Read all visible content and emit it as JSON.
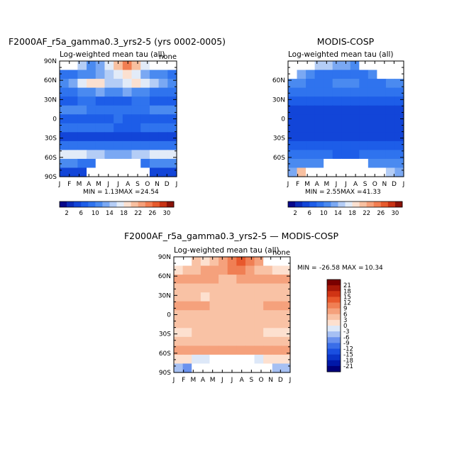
{
  "chart_data": [
    {
      "type": "heatmap",
      "title": "F2000AF_r5a_gamma0.3_yrs2-5 (yrs 0002-0005)",
      "subtitle_left": "Log-weighted mean tau (all)",
      "subtitle_right": "none",
      "x_ticks": [
        "J",
        "F",
        "M",
        "A",
        "M",
        "J",
        "J",
        "A",
        "S",
        "O",
        "N",
        "D",
        "J"
      ],
      "y_ticks": [
        "90N",
        "60N",
        "30N",
        "0",
        "30S",
        "60S",
        "90S"
      ],
      "stats": {
        "min_label": "MIN =",
        "min": "1.13",
        "max_label": "MAX =",
        "max": "24.54"
      },
      "levels": [
        2,
        4,
        6,
        8,
        10,
        12,
        14,
        16,
        18,
        20,
        22,
        24,
        26,
        28,
        30
      ],
      "colorbar_labels": [
        "2",
        "6",
        "10",
        "14",
        "18",
        "22",
        "26",
        "30"
      ],
      "rows": [
        {
          "lat": "90N",
          "values": [
            null,
            null,
            14,
            10,
            12,
            16,
            20,
            24,
            20,
            16,
            null,
            null,
            null
          ]
        },
        {
          "lat": "75N",
          "values": [
            8,
            8,
            10,
            10,
            12,
            14,
            16,
            18,
            16,
            12,
            10,
            10,
            8
          ]
        },
        {
          "lat": "60N",
          "values": [
            10,
            12,
            16,
            18,
            18,
            14,
            14,
            16,
            18,
            16,
            14,
            12,
            10
          ]
        },
        {
          "lat": "45N",
          "values": [
            8,
            8,
            10,
            10,
            12,
            10,
            10,
            12,
            10,
            10,
            8,
            8,
            8
          ]
        },
        {
          "lat": "30N",
          "values": [
            6,
            6,
            8,
            8,
            6,
            6,
            6,
            6,
            8,
            8,
            6,
            6,
            6
          ]
        },
        {
          "lat": "15N",
          "values": [
            10,
            10,
            10,
            8,
            8,
            8,
            8,
            8,
            8,
            8,
            10,
            10,
            10
          ]
        },
        {
          "lat": "0",
          "values": [
            6,
            6,
            6,
            6,
            6,
            6,
            8,
            6,
            6,
            6,
            6,
            6,
            6
          ]
        },
        {
          "lat": "15S",
          "values": [
            8,
            8,
            8,
            8,
            8,
            8,
            6,
            6,
            6,
            8,
            8,
            8,
            8
          ]
        },
        {
          "lat": "30S",
          "values": [
            4,
            4,
            4,
            4,
            4,
            4,
            4,
            4,
            4,
            4,
            4,
            4,
            4
          ]
        },
        {
          "lat": "45S",
          "values": [
            8,
            8,
            8,
            8,
            8,
            8,
            8,
            8,
            8,
            8,
            8,
            8,
            8
          ]
        },
        {
          "lat": "60S",
          "values": [
            16,
            16,
            16,
            14,
            14,
            12,
            12,
            12,
            14,
            14,
            16,
            16,
            16
          ]
        },
        {
          "lat": "75S",
          "values": [
            10,
            10,
            8,
            8,
            null,
            null,
            null,
            null,
            null,
            8,
            10,
            10,
            10
          ]
        },
        {
          "lat": "90S",
          "values": [
            4,
            4,
            4,
            null,
            null,
            null,
            null,
            null,
            null,
            null,
            4,
            4,
            4
          ]
        }
      ]
    },
    {
      "type": "heatmap",
      "title": "MODIS-COSP",
      "subtitle_left": "Log-weighted mean tau (all)",
      "subtitle_right": "",
      "x_ticks": [
        "J",
        "F",
        "M",
        "A",
        "M",
        "J",
        "J",
        "A",
        "S",
        "O",
        "N",
        "D",
        "J"
      ],
      "y_ticks": [
        "60N",
        "30N",
        "0",
        "30S",
        "60S"
      ],
      "stats": {
        "min_label": "MIN =",
        "min": "2.55",
        "max_label": "MAX =",
        "max": "41.33"
      },
      "levels": [
        2,
        4,
        6,
        8,
        10,
        12,
        14,
        16,
        18,
        20,
        22,
        24,
        26,
        28,
        30
      ],
      "colorbar_labels": [
        "2",
        "6",
        "10",
        "14",
        "18",
        "22",
        "26",
        "30"
      ],
      "rows": [
        {
          "lat": "90N",
          "values": [
            null,
            null,
            null,
            14,
            14,
            12,
            12,
            10,
            null,
            null,
            null,
            null,
            null
          ]
        },
        {
          "lat": "75N",
          "values": [
            null,
            12,
            10,
            8,
            8,
            8,
            8,
            8,
            8,
            10,
            null,
            null,
            null
          ]
        },
        {
          "lat": "60N",
          "values": [
            10,
            10,
            8,
            8,
            8,
            10,
            10,
            10,
            8,
            8,
            8,
            10,
            10
          ]
        },
        {
          "lat": "45N",
          "values": [
            8,
            8,
            8,
            8,
            8,
            8,
            8,
            8,
            8,
            8,
            8,
            8,
            8
          ]
        },
        {
          "lat": "30N",
          "values": [
            6,
            6,
            6,
            6,
            6,
            6,
            6,
            6,
            6,
            6,
            6,
            6,
            6
          ]
        },
        {
          "lat": "15N",
          "values": [
            4,
            4,
            4,
            4,
            4,
            4,
            4,
            4,
            4,
            4,
            4,
            4,
            4
          ]
        },
        {
          "lat": "0",
          "values": [
            4,
            4,
            4,
            4,
            4,
            4,
            4,
            4,
            4,
            4,
            4,
            4,
            4
          ]
        },
        {
          "lat": "15S",
          "values": [
            4,
            4,
            4,
            4,
            4,
            4,
            4,
            4,
            4,
            4,
            4,
            4,
            4
          ]
        },
        {
          "lat": "30S",
          "values": [
            4,
            4,
            4,
            4,
            4,
            4,
            4,
            4,
            4,
            4,
            4,
            4,
            4
          ]
        },
        {
          "lat": "45S",
          "values": [
            6,
            6,
            6,
            6,
            6,
            6,
            6,
            6,
            6,
            6,
            6,
            6,
            6
          ]
        },
        {
          "lat": "60S",
          "values": [
            8,
            8,
            8,
            8,
            8,
            6,
            6,
            6,
            8,
            8,
            8,
            8,
            8
          ]
        },
        {
          "lat": "75S",
          "values": [
            10,
            10,
            10,
            10,
            null,
            null,
            null,
            null,
            null,
            10,
            10,
            10,
            10
          ]
        },
        {
          "lat": "90S",
          "values": [
            12,
            20,
            null,
            null,
            null,
            null,
            null,
            null,
            null,
            null,
            null,
            14,
            12
          ]
        }
      ]
    },
    {
      "type": "heatmap",
      "title": "F2000AF_r5a_gamma0.3_yrs2-5 — MODIS-COSP",
      "subtitle_left": "Log-weighted mean tau (all)",
      "subtitle_right": "none",
      "x_ticks": [
        "J",
        "F",
        "M",
        "A",
        "M",
        "J",
        "J",
        "A",
        "S",
        "O",
        "N",
        "D",
        "J"
      ],
      "y_ticks": [
        "90N",
        "60N",
        "30N",
        "0",
        "30S",
        "60S",
        "90S"
      ],
      "stats": {
        "min_label": "MIN =",
        "min": "-26.58",
        "max_label": "MAX =",
        "max": "10.34"
      },
      "levels": [
        -21,
        -18,
        -15,
        -12,
        -9,
        -6,
        -3,
        0,
        3,
        6,
        9,
        12,
        15,
        18,
        21
      ],
      "colorbar_labels": [
        "21",
        "18",
        "15",
        "12",
        "9",
        "6",
        "3",
        "0",
        "-3",
        "-6",
        "-9",
        "-12",
        "-15",
        "-18",
        "-21"
      ],
      "rows": [
        {
          "lat": "90N",
          "values": [
            null,
            null,
            3,
            0,
            3,
            6,
            9,
            12,
            9,
            6,
            null,
            null,
            null
          ]
        },
        {
          "lat": "75N",
          "values": [
            0,
            3,
            3,
            6,
            6,
            6,
            9,
            9,
            6,
            3,
            3,
            0,
            0
          ]
        },
        {
          "lat": "60N",
          "values": [
            6,
            6,
            6,
            6,
            6,
            3,
            3,
            6,
            6,
            6,
            6,
            6,
            6
          ]
        },
        {
          "lat": "45N",
          "values": [
            3,
            3,
            3,
            3,
            3,
            3,
            3,
            3,
            3,
            3,
            3,
            3,
            3
          ]
        },
        {
          "lat": "30N",
          "values": [
            3,
            3,
            3,
            0,
            3,
            3,
            3,
            3,
            3,
            3,
            3,
            3,
            3
          ]
        },
        {
          "lat": "15N",
          "values": [
            6,
            6,
            6,
            6,
            3,
            3,
            3,
            3,
            3,
            3,
            6,
            6,
            6
          ]
        },
        {
          "lat": "0",
          "values": [
            3,
            3,
            3,
            3,
            3,
            3,
            3,
            3,
            3,
            3,
            3,
            3,
            3
          ]
        },
        {
          "lat": "15S",
          "values": [
            3,
            3,
            3,
            3,
            3,
            3,
            3,
            3,
            3,
            3,
            3,
            3,
            3
          ]
        },
        {
          "lat": "30S",
          "values": [
            0,
            0,
            3,
            3,
            3,
            3,
            3,
            3,
            3,
            3,
            0,
            0,
            0
          ]
        },
        {
          "lat": "45S",
          "values": [
            3,
            3,
            3,
            3,
            3,
            3,
            3,
            3,
            3,
            3,
            3,
            3,
            3
          ]
        },
        {
          "lat": "60S",
          "values": [
            6,
            6,
            6,
            6,
            6,
            6,
            6,
            6,
            6,
            6,
            6,
            6,
            6
          ]
        },
        {
          "lat": "75S",
          "values": [
            0,
            0,
            -3,
            -3,
            null,
            null,
            null,
            null,
            null,
            -3,
            0,
            0,
            0
          ]
        },
        {
          "lat": "90S",
          "values": [
            -6,
            -9,
            null,
            null,
            null,
            null,
            null,
            null,
            null,
            null,
            null,
            -6,
            -6
          ]
        }
      ]
    }
  ],
  "colors": {
    "scale_tau": [
      "#08088a",
      "#0b2bb8",
      "#1245d8",
      "#1d5de8",
      "#2f73ee",
      "#4a8af0",
      "#7aa8f3",
      "#b4cdf6",
      "#e2ebf8",
      "#fbe0d0",
      "#f8c0a0",
      "#f5a07a",
      "#f27e52",
      "#e65a2c",
      "#c83214",
      "#8a1208"
    ],
    "scale_diff": [
      "#00007a",
      "#0018a8",
      "#0a34c8",
      "#1a4fe0",
      "#3a6ee8",
      "#6a92ee",
      "#a6c0f3",
      "#dde8f8",
      "#fde0cf",
      "#f9c2a5",
      "#f5a17c",
      "#f07f54",
      "#e8582c",
      "#d03414",
      "#a81808",
      "#7a0000"
    ]
  }
}
